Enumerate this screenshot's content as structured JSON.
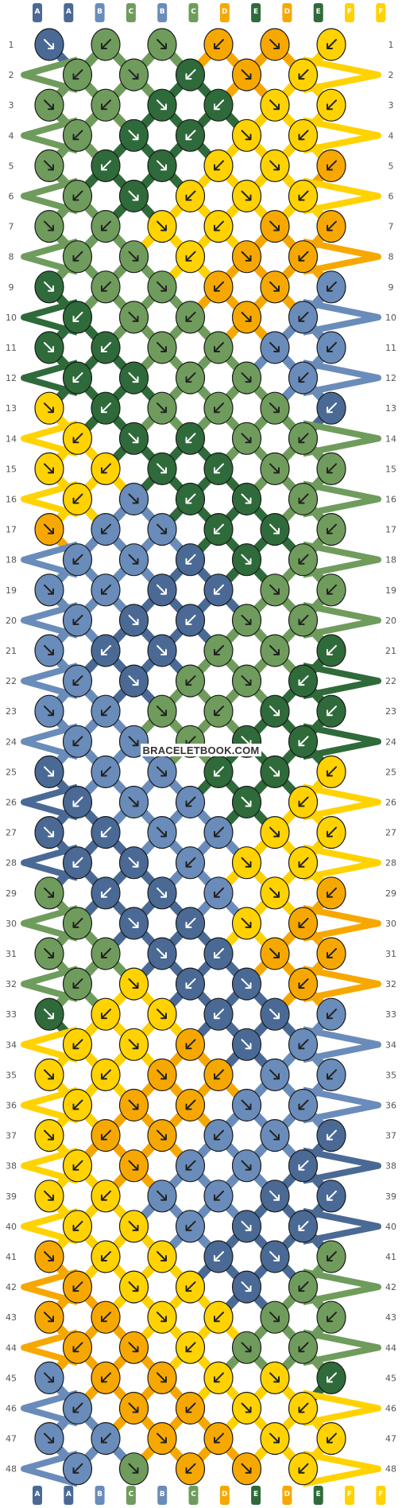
{
  "watermark": "BRACELETBOOK.COM",
  "strand_labels": [
    "A",
    "A",
    "B",
    "C",
    "B",
    "C",
    "D",
    "E",
    "D",
    "E",
    "F",
    "F"
  ],
  "strand_colors": {
    "A": "#4a6a95",
    "B": "#6a8cba",
    "C": "#6f9c5c",
    "D": "#f7a800",
    "E": "#2f6a3a",
    "F": "#ffd200"
  },
  "row_count": 48,
  "rows": [
    [
      "A",
      "C",
      "C",
      "D",
      "D",
      "F"
    ],
    [
      "C",
      "C",
      "E",
      "D",
      "F"
    ],
    [
      "C",
      "C",
      "E",
      "E",
      "F",
      "F"
    ],
    [
      "C",
      "E",
      "E",
      "F",
      "F"
    ],
    [
      "C",
      "E",
      "E",
      "F",
      "F",
      "D"
    ],
    [
      "C",
      "E",
      "F",
      "F",
      "F"
    ],
    [
      "C",
      "C",
      "F",
      "F",
      "D",
      "D"
    ],
    [
      "C",
      "C",
      "F",
      "D",
      "D"
    ],
    [
      "E",
      "C",
      "C",
      "D",
      "D",
      "B"
    ],
    [
      "E",
      "C",
      "C",
      "D",
      "B"
    ],
    [
      "E",
      "E",
      "C",
      "C",
      "B",
      "B"
    ],
    [
      "E",
      "E",
      "C",
      "C",
      "B"
    ],
    [
      "F",
      "E",
      "C",
      "C",
      "C",
      "A"
    ],
    [
      "F",
      "E",
      "E",
      "C",
      "C"
    ],
    [
      "F",
      "F",
      "E",
      "E",
      "C",
      "C"
    ],
    [
      "F",
      "B",
      "E",
      "E",
      "C"
    ],
    [
      "D",
      "B",
      "B",
      "E",
      "E",
      "C"
    ],
    [
      "B",
      "B",
      "A",
      "E",
      "C"
    ],
    [
      "B",
      "B",
      "A",
      "A",
      "C",
      "C"
    ],
    [
      "B",
      "A",
      "A",
      "C",
      "C"
    ],
    [
      "B",
      "A",
      "A",
      "C",
      "C",
      "E"
    ],
    [
      "B",
      "A",
      "C",
      "C",
      "E"
    ],
    [
      "B",
      "B",
      "C",
      "C",
      "E",
      "E"
    ],
    [
      "B",
      "B",
      "C",
      "E",
      "E"
    ],
    [
      "A",
      "B",
      "B",
      "E",
      "E",
      "F"
    ],
    [
      "A",
      "B",
      "B",
      "E",
      "F"
    ],
    [
      "A",
      "A",
      "B",
      "B",
      "F",
      "F"
    ],
    [
      "A",
      "A",
      "B",
      "F",
      "F"
    ],
    [
      "C",
      "A",
      "A",
      "B",
      "F",
      "D"
    ],
    [
      "C",
      "A",
      "A",
      "F",
      "D"
    ],
    [
      "C",
      "C",
      "A",
      "A",
      "D",
      "D"
    ],
    [
      "C",
      "F",
      "A",
      "A",
      "D"
    ],
    [
      "E",
      "F",
      "F",
      "A",
      "A",
      "B"
    ],
    [
      "F",
      "F",
      "D",
      "A",
      "B"
    ],
    [
      "F",
      "F",
      "D",
      "D",
      "B",
      "B"
    ],
    [
      "F",
      "D",
      "D",
      "B",
      "B"
    ],
    [
      "F",
      "D",
      "D",
      "B",
      "B",
      "A"
    ],
    [
      "F",
      "D",
      "B",
      "B",
      "A"
    ],
    [
      "F",
      "F",
      "B",
      "B",
      "A",
      "A"
    ],
    [
      "F",
      "F",
      "B",
      "A",
      "A"
    ],
    [
      "D",
      "F",
      "F",
      "A",
      "A",
      "C"
    ],
    [
      "D",
      "F",
      "F",
      "A",
      "C"
    ],
    [
      "D",
      "D",
      "F",
      "F",
      "C",
      "C"
    ],
    [
      "D",
      "D",
      "F",
      "C",
      "C"
    ],
    [
      "B",
      "D",
      "D",
      "F",
      "F",
      "E"
    ],
    [
      "B",
      "D",
      "D",
      "F",
      "F"
    ],
    [
      "B",
      "B",
      "D",
      "D",
      "F",
      "F"
    ],
    [
      "B",
      "C",
      "D",
      "D",
      "F"
    ]
  ]
}
